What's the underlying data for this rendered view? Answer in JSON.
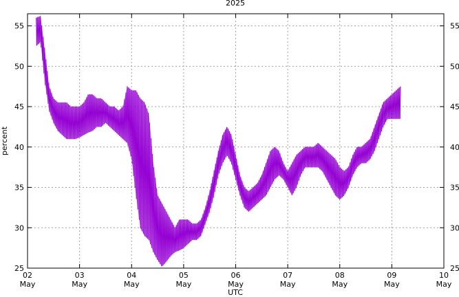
{
  "chart_data": {
    "type": "line",
    "title": "2025",
    "xlabel": "UTC",
    "ylabel": "percent",
    "xlim": [
      "2025-05-02T00:00",
      "2025-05-10T00:00"
    ],
    "ylim": [
      25,
      56.5
    ],
    "x_tick_labels": [
      {
        "day": "02",
        "month": "May"
      },
      {
        "day": "03",
        "month": "May"
      },
      {
        "day": "04",
        "month": "May"
      },
      {
        "day": "05",
        "month": "May"
      },
      {
        "day": "06",
        "month": "May"
      },
      {
        "day": "07",
        "month": "May"
      },
      {
        "day": "08",
        "month": "May"
      },
      {
        "day": "09",
        "month": "May"
      },
      {
        "day": "10",
        "month": "May"
      }
    ],
    "y_ticks": [
      25,
      30,
      35,
      40,
      45,
      50,
      55
    ],
    "grid": true,
    "mirrored_right_axis": true,
    "color": "#9400d3",
    "series": [
      {
        "band": true,
        "x": [
          "2025-05-02T04:00",
          "2025-05-02T06:00",
          "2025-05-02T08:00",
          "2025-05-02T10:00",
          "2025-05-02T12:00",
          "2025-05-02T14:00",
          "2025-05-02T16:00",
          "2025-05-02T18:00",
          "2025-05-02T20:00",
          "2025-05-02T22:00",
          "2025-05-03T00:00",
          "2025-05-03T02:00",
          "2025-05-03T04:00",
          "2025-05-03T06:00",
          "2025-05-03T08:00",
          "2025-05-03T10:00",
          "2025-05-03T12:00",
          "2025-05-03T14:00",
          "2025-05-03T16:00",
          "2025-05-03T18:00",
          "2025-05-03T20:00",
          "2025-05-03T22:00",
          "2025-05-04T00:00",
          "2025-05-04T02:00",
          "2025-05-04T04:00",
          "2025-05-04T06:00",
          "2025-05-04T08:00",
          "2025-05-04T10:00",
          "2025-05-04T12:00",
          "2025-05-04T14:00",
          "2025-05-04T16:00",
          "2025-05-04T18:00",
          "2025-05-04T20:00",
          "2025-05-04T22:00",
          "2025-05-05T00:00",
          "2025-05-05T02:00",
          "2025-05-05T04:00",
          "2025-05-05T06:00",
          "2025-05-05T08:00",
          "2025-05-05T10:00",
          "2025-05-05T12:00",
          "2025-05-05T14:00",
          "2025-05-05T16:00",
          "2025-05-05T18:00",
          "2025-05-05T20:00",
          "2025-05-05T22:00",
          "2025-05-06T00:00",
          "2025-05-06T02:00",
          "2025-05-06T04:00",
          "2025-05-06T06:00",
          "2025-05-06T08:00",
          "2025-05-06T10:00",
          "2025-05-06T12:00",
          "2025-05-06T14:00",
          "2025-05-06T16:00",
          "2025-05-06T18:00",
          "2025-05-06T20:00",
          "2025-05-06T22:00",
          "2025-05-07T00:00",
          "2025-05-07T02:00",
          "2025-05-07T04:00",
          "2025-05-07T06:00",
          "2025-05-07T08:00",
          "2025-05-07T10:00",
          "2025-05-07T12:00",
          "2025-05-07T14:00",
          "2025-05-07T16:00",
          "2025-05-07T18:00",
          "2025-05-07T20:00",
          "2025-05-07T22:00",
          "2025-05-08T00:00",
          "2025-05-08T02:00",
          "2025-05-08T04:00",
          "2025-05-08T06:00",
          "2025-05-08T08:00",
          "2025-05-08T10:00",
          "2025-05-08T12:00",
          "2025-05-08T14:00",
          "2025-05-08T16:00",
          "2025-05-08T18:00",
          "2025-05-08T20:00",
          "2025-05-08T22:00",
          "2025-05-09T00:00",
          "2025-05-09T02:00",
          "2025-05-09T04:00"
        ],
        "lower": [
          52.5,
          53,
          48,
          44.5,
          43,
          42,
          41.5,
          41,
          41,
          41,
          41.2,
          41.5,
          41.8,
          42,
          42.5,
          42.5,
          43,
          42.5,
          42,
          41.5,
          41,
          40.5,
          38.5,
          34,
          30,
          29,
          28.5,
          27,
          26,
          25.2,
          25.8,
          26.5,
          27,
          27.2,
          27.5,
          28,
          28.5,
          28.5,
          29,
          30.5,
          32,
          34,
          36.5,
          38,
          39,
          38,
          36,
          34,
          32.5,
          32,
          32.5,
          33,
          33.5,
          34,
          35,
          36,
          36.5,
          36,
          35,
          34,
          35,
          36.5,
          37.5,
          37.5,
          37.5,
          37.5,
          37,
          36,
          35,
          34,
          33.5,
          34,
          35,
          36.5,
          37.5,
          38,
          38,
          38.5,
          39.5,
          41,
          42.5,
          43.5,
          43.5,
          43.5,
          43.5
        ],
        "upper": [
          56,
          56.2,
          52,
          47.5,
          46,
          45.5,
          45.5,
          45.5,
          45,
          45,
          45,
          45.5,
          46.5,
          46.5,
          46,
          46,
          45.5,
          45,
          45,
          44.5,
          45,
          47.5,
          47,
          47,
          46,
          45.5,
          44,
          38,
          34,
          33,
          32,
          31,
          30,
          31,
          31,
          31,
          30.5,
          30.5,
          31,
          32.5,
          34.5,
          37,
          39.5,
          41.5,
          42.5,
          41.5,
          39,
          36.5,
          35,
          34.5,
          35,
          35.5,
          36.5,
          38,
          39.5,
          40,
          39.5,
          38,
          37,
          38,
          39,
          39.5,
          40,
          40,
          40,
          40.5,
          40,
          39.5,
          39,
          38.5,
          37.5,
          37,
          37.5,
          39,
          40,
          40,
          40.5,
          41,
          42.5,
          44,
          45.5,
          46,
          46.5,
          47,
          47.5
        ]
      }
    ]
  }
}
